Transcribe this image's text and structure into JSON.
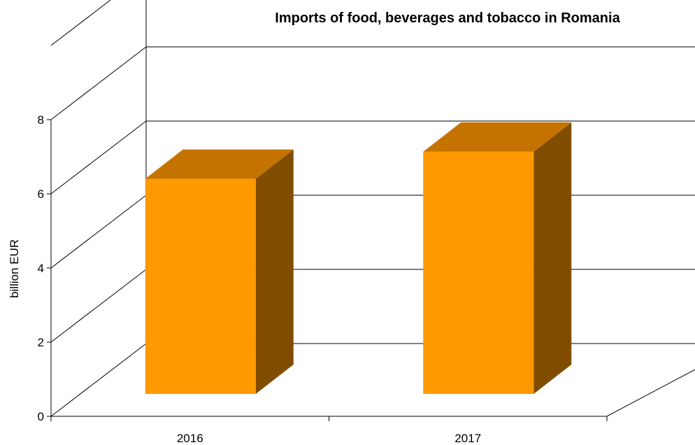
{
  "chart_data": {
    "type": "bar",
    "title": "Imports of food, beverages and tobacco in Romania",
    "xlabel": "",
    "ylabel": "billion EUR",
    "categories": [
      "2016",
      "2017"
    ],
    "values": [
      5.8,
      6.53
    ],
    "ylim": [
      0,
      8
    ],
    "yticks": [
      0,
      2,
      4,
      6,
      8
    ],
    "grid": true,
    "style": "3d",
    "colors": {
      "bar_front": "#FF9900",
      "bar_top": "#C47300",
      "bar_side": "#804D00"
    }
  }
}
